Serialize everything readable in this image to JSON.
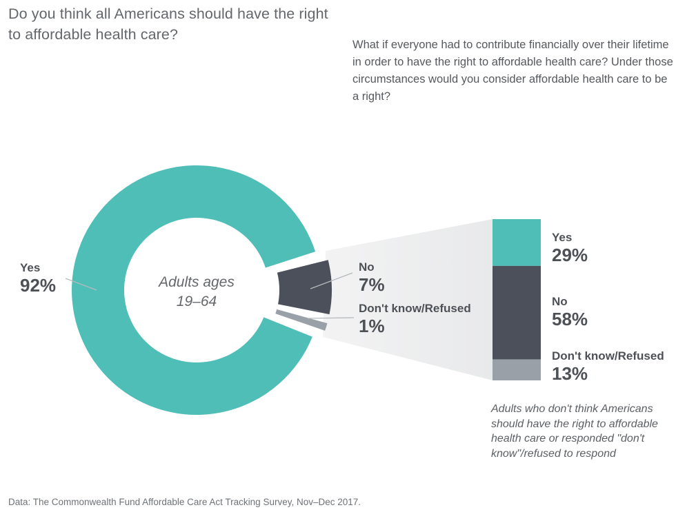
{
  "title": "Do you think all Americans should have the right to affordable health care?",
  "followup_question": "What if everyone had to contribute financially over their lifetime in order to have the right to affordable health care? Under those circumstances would you consider affordable health care to be a right?",
  "source": "Data: The Commonwealth Fund Affordable Care Act Tracking Survey, Nov–Dec 2017.",
  "colors": {
    "teal": "#4fbeb7",
    "dark_slate": "#4b505a",
    "light_gray": "#9aa0a8",
    "beam_light": "#f3f3f4",
    "beam_dark": "#e8e9ea",
    "connector_line": "#b7babd",
    "label_text": "#4d5156"
  },
  "chart_data": {
    "type": "pie",
    "subtype": "donut-with-breakout-stacked-bar",
    "title": "Do you think all Americans should have the right to affordable health care?",
    "donut": {
      "center_label_line1": "Adults ages",
      "center_label_line2": "19–64",
      "segments": [
        {
          "label": "Yes",
          "value_pct": 92,
          "display": "92%",
          "color": "#4fbeb7"
        },
        {
          "label": "No",
          "value_pct": 7,
          "display": "7%",
          "color": "#4b505a"
        },
        {
          "label": "Don't know/Refused",
          "value_pct": 1,
          "display": "1%",
          "color": "#9aa0a8"
        }
      ]
    },
    "breakout_bar": {
      "question": "What if everyone had to contribute financially over their lifetime in order to have the right to affordable health care? Under those circumstances would you consider affordable health care to be a right?",
      "segments": [
        {
          "label": "Yes",
          "value_pct": 29,
          "display": "29%",
          "color": "#4fbeb7"
        },
        {
          "label": "No",
          "value_pct": 58,
          "display": "58%",
          "color": "#4b505a"
        },
        {
          "label": "Don't know/Refused",
          "value_pct": 13,
          "display": "13%",
          "color": "#9aa0a8"
        }
      ],
      "note": "Adults who don't think Americans should have the right to affordable health care or responded \"don't know\"/refused to respond"
    }
  }
}
